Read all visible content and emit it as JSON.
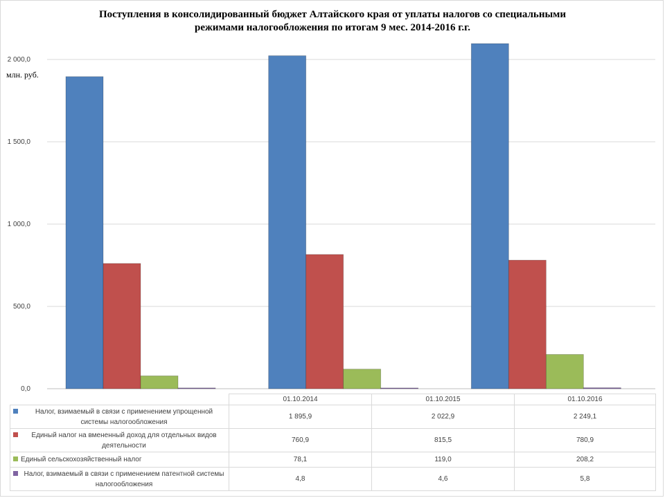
{
  "chart_data": {
    "type": "bar",
    "title_line1": "Поступления в консолидированный бюджет Алтайского края от уплаты налогов со специальными",
    "title_line2": "режимами налогообложения по итогам 9 мес. 2014-2016 г.г.",
    "ylabel": "млн. руб.",
    "ylim": [
      0,
      2000
    ],
    "y_ticks": [
      "0,0",
      "500,0",
      "1 000,0",
      "1 500,0",
      "2 000,0"
    ],
    "categories": [
      "01.10.2014",
      "01.10.2015",
      "01.10.2016"
    ],
    "series": [
      {
        "name": "Налог, взимаемый в связи с применением упрощенной системы налогообложения",
        "color": "#4f81bd",
        "values": [
          1895.9,
          2022.9,
          2249.1
        ],
        "labels": [
          "1 895,9",
          "2 022,9",
          "2 249,1"
        ]
      },
      {
        "name": "Единый налог на вмененный доход для отдельных видов деятельности",
        "color": "#c0504d",
        "values": [
          760.9,
          815.5,
          780.9
        ],
        "labels": [
          "760,9",
          "815,5",
          "780,9"
        ]
      },
      {
        "name": "Единый сельскохозяйственный налог",
        "color": "#9bbb59",
        "values": [
          78.1,
          119.0,
          208.2
        ],
        "labels": [
          "78,1",
          "119,0",
          "208,2"
        ]
      },
      {
        "name": "Налог, взимаемый в связи с применением патентной системы налогообложения",
        "color": "#8064a2",
        "values": [
          4.8,
          4.6,
          5.8
        ],
        "labels": [
          "4,8",
          "4,6",
          "5,8"
        ]
      }
    ]
  }
}
